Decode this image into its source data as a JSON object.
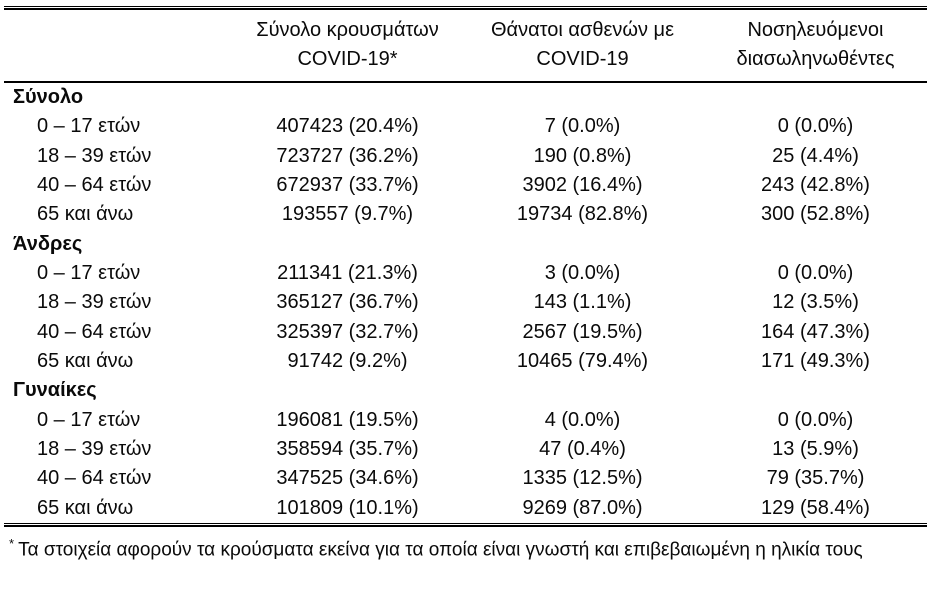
{
  "table": {
    "columns": [
      {
        "line1": "Σύνολο κρουσμάτων",
        "line2": "COVID-19*"
      },
      {
        "line1": "Θάνατοι ασθενών με",
        "line2": "COVID-19"
      },
      {
        "line1": "Νοσηλευόμενοι",
        "line2": "διασωληνωθέντες"
      }
    ],
    "sections": [
      {
        "title": "Σύνολο",
        "rows": [
          {
            "age": "0 – 17 ετών",
            "cases": "407423 (20.4%)",
            "deaths": "7 (0.0%)",
            "intubated": "0 (0.0%)"
          },
          {
            "age": "18 – 39 ετών",
            "cases": "723727 (36.2%)",
            "deaths": "190 (0.8%)",
            "intubated": "25 (4.4%)"
          },
          {
            "age": "40 – 64 ετών",
            "cases": "672937 (33.7%)",
            "deaths": "3902 (16.4%)",
            "intubated": "243 (42.8%)"
          },
          {
            "age": "65 και άνω",
            "cases": "193557 (9.7%)",
            "deaths": "19734 (82.8%)",
            "intubated": "300 (52.8%)"
          }
        ]
      },
      {
        "title": "Άνδρες",
        "rows": [
          {
            "age": "0 – 17 ετών",
            "cases": "211341 (21.3%)",
            "deaths": "3 (0.0%)",
            "intubated": "0 (0.0%)"
          },
          {
            "age": "18 – 39 ετών",
            "cases": "365127 (36.7%)",
            "deaths": "143 (1.1%)",
            "intubated": "12 (3.5%)"
          },
          {
            "age": "40 – 64 ετών",
            "cases": "325397 (32.7%)",
            "deaths": "2567 (19.5%)",
            "intubated": "164 (47.3%)"
          },
          {
            "age": "65 και άνω",
            "cases": "91742 (9.2%)",
            "deaths": "10465 (79.4%)",
            "intubated": "171 (49.3%)"
          }
        ]
      },
      {
        "title": "Γυναίκες",
        "rows": [
          {
            "age": "0 – 17 ετών",
            "cases": "196081 (19.5%)",
            "deaths": "4 (0.0%)",
            "intubated": "0 (0.0%)"
          },
          {
            "age": "18 – 39 ετών",
            "cases": "358594 (35.7%)",
            "deaths": "47 (0.4%)",
            "intubated": "13 (5.9%)"
          },
          {
            "age": "40 – 64 ετών",
            "cases": "347525 (34.6%)",
            "deaths": "1335 (12.5%)",
            "intubated": "79 (35.7%)"
          },
          {
            "age": "65 και άνω",
            "cases": "101809 (10.1%)",
            "deaths": "9269 (87.0%)",
            "intubated": "129 (58.4%)"
          }
        ]
      }
    ]
  },
  "footnote": {
    "marker": "*",
    "text": "Τα στοιχεία αφορούν τα κρούσματα εκείνα για τα οποία είναι γνωστή και επιβεβαιωμένη η ηλικία τους"
  },
  "colors": {
    "text": "#0a0a0a",
    "rule": "#000000",
    "background": "#ffffff"
  }
}
